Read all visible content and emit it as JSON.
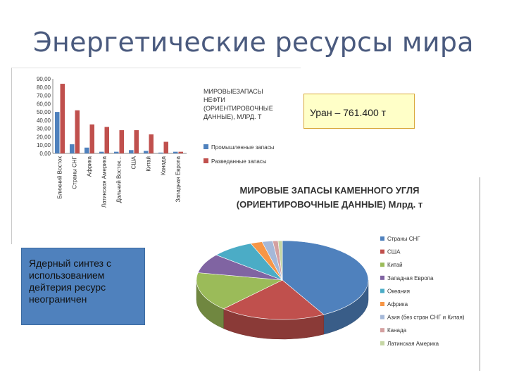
{
  "slide": {
    "title": "Энергетические ресурсы мира"
  },
  "uran": {
    "text": "Уран – 761.400 т"
  },
  "nuclear": {
    "lines": [
      "Ядерный синтез с",
      "использованием",
      "дейтерия ресурс",
      "неограничен"
    ]
  },
  "colors": {
    "title": "#4a5a7e",
    "oil_industrial": "#4f81bd",
    "oil_explored": "#c0504d",
    "uran_bg": "#ffffc8",
    "nuclear_bg": "#4f81bd"
  },
  "chart_data": [
    {
      "type": "bar",
      "title_lines": [
        "МИРОВЫЕЗАПАСЫ",
        "НЕФТИ",
        "(ОРИЕНТИРОВОЧНЫЕ",
        "ДАННЫЕ), МЛРД. Т"
      ],
      "categories": [
        "Ближний Восток",
        "Страны СНГ",
        "Африка",
        "Латинская Америка",
        "Дальний Восток...",
        "США",
        "Китай",
        "Канада",
        "Западная Европа"
      ],
      "series": [
        {
          "name": "Промышленные запасы",
          "values": [
            50,
            11,
            7,
            2,
            2,
            4,
            3,
            1,
            2
          ]
        },
        {
          "name": "Разведанные запасы",
          "values": [
            84,
            52,
            35,
            32,
            28,
            28,
            23,
            14,
            2
          ]
        }
      ],
      "y_ticks": [
        "0,00",
        "10,00",
        "20,00",
        "30,00",
        "40,00",
        "50,00",
        "60,00",
        "70,00",
        "80,00",
        "90,00"
      ],
      "ylim": [
        0,
        90
      ],
      "legend_position": "right",
      "grid": false
    },
    {
      "type": "pie",
      "title_lines": [
        "МИРОВЫЕ ЗАПАСЫ КАМЕННОГО УГЛЯ",
        "(ОРИЕНТИРОВОЧНЫЕ ДАННЫЕ) Млрд. т"
      ],
      "categories": [
        "Страны СНГ",
        "США",
        "Китай",
        "Западная Европа",
        "Океания",
        "Африка",
        "Азия (без стран СНГ и Китая)",
        "Канада",
        "Латинская Америка"
      ],
      "values": [
        42,
        20,
        16,
        8,
        8,
        2.2,
        2,
        1,
        0.8
      ],
      "colors": [
        "#4f81bd",
        "#c0504d",
        "#9bbb59",
        "#8064a2",
        "#4bacc6",
        "#f79646",
        "#a5b8d8",
        "#d4a0a0",
        "#c5d6a4"
      ],
      "legend_position": "right"
    }
  ]
}
